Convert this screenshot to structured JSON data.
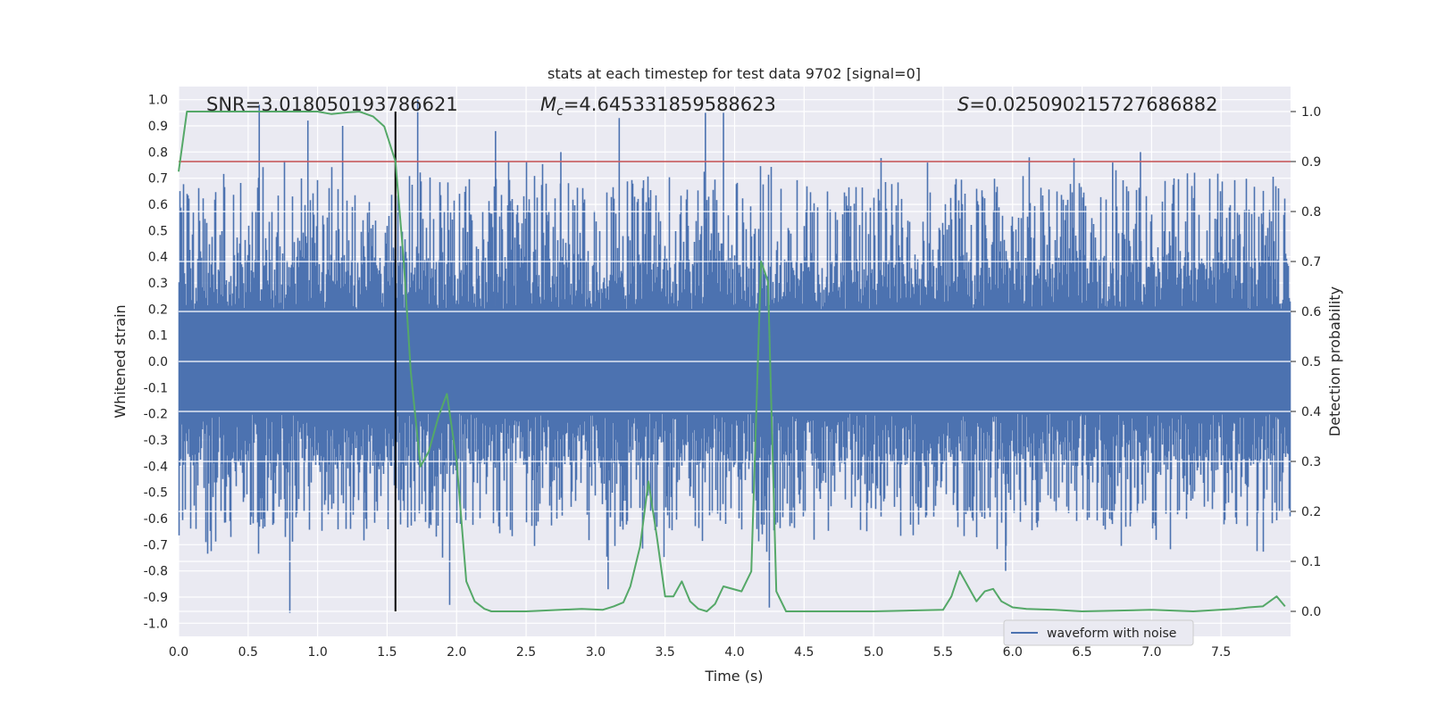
{
  "chart_data": {
    "type": "line",
    "title": "stats at each timestep for test data 9702 [signal=0]",
    "xlabel": "Time (s)",
    "ylabel_left": "Whitened strain",
    "ylabel_right": "Detection probability",
    "xlim": [
      0.0,
      8.0
    ],
    "ylim_left": [
      -1.05,
      1.05
    ],
    "ylim_right": [
      -0.05,
      1.05
    ],
    "xticks": [
      "0.0",
      "0.5",
      "1.0",
      "1.5",
      "2.0",
      "2.5",
      "3.0",
      "3.5",
      "4.0",
      "4.5",
      "5.0",
      "5.5",
      "6.0",
      "6.5",
      "7.0",
      "7.5"
    ],
    "yticks_left": [
      "1.0",
      "0.9",
      "0.8",
      "0.7",
      "0.6",
      "0.5",
      "0.4",
      "0.3",
      "0.2",
      "0.1",
      "0.0",
      "-0.1",
      "-0.2",
      "-0.3",
      "-0.4",
      "-0.5",
      "-0.6",
      "-0.7",
      "-0.8",
      "-0.9",
      "-1.0"
    ],
    "yticks_right": [
      "1.0",
      "0.9",
      "0.8",
      "0.7",
      "0.6",
      "0.5",
      "0.4",
      "0.3",
      "0.2",
      "0.1",
      "0.0"
    ],
    "grid": true,
    "legend_placement": "lower-center",
    "annotations": {
      "snr": "SNR=3.018050193786621",
      "mc_prefix": "M",
      "mc_sub": "c",
      "mc_value": "=4.645331859588623",
      "s_prefix": "S",
      "s_value": "=0.025090215727686882"
    },
    "threshold": {
      "value": 0.9,
      "axis": "right",
      "color": "#c44e52"
    },
    "marker_line": {
      "x": 1.56,
      "color": "#000000"
    },
    "series": [
      {
        "name": "waveform with noise",
        "axis": "left",
        "color": "#4c72b0",
        "style": "dense-noise",
        "core_amplitude": 0.2,
        "spike_peaks": [
          {
            "x": 0.58,
            "y": 0.98
          },
          {
            "x": 0.93,
            "y": 0.92
          },
          {
            "x": 1.18,
            "y": 0.9
          },
          {
            "x": 1.72,
            "y": 1.0
          },
          {
            "x": 2.28,
            "y": 0.88
          },
          {
            "x": 2.75,
            "y": 0.8
          },
          {
            "x": 3.17,
            "y": 0.93
          },
          {
            "x": 3.79,
            "y": 0.95
          },
          {
            "x": 3.92,
            "y": 0.95
          },
          {
            "x": 6.12,
            "y": 0.78
          },
          {
            "x": 6.72,
            "y": 0.76
          },
          {
            "x": 6.92,
            "y": 0.8
          },
          {
            "x": 0.8,
            "y": -0.96
          },
          {
            "x": 1.95,
            "y": -0.93
          },
          {
            "x": 3.09,
            "y": -0.87
          },
          {
            "x": 4.25,
            "y": -0.94
          },
          {
            "x": 5.95,
            "y": -0.8
          }
        ]
      },
      {
        "name": "",
        "axis": "right",
        "color": "#55a868",
        "x": [
          0.0,
          0.06,
          0.12,
          0.5,
          1.0,
          1.1,
          1.2,
          1.3,
          1.4,
          1.48,
          1.56,
          1.62,
          1.67,
          1.74,
          1.8,
          1.87,
          1.93,
          2.0,
          2.07,
          2.13,
          2.2,
          2.25,
          2.3,
          2.5,
          2.75,
          2.9,
          3.05,
          3.13,
          3.2,
          3.25,
          3.32,
          3.38,
          3.44,
          3.5,
          3.56,
          3.62,
          3.68,
          3.74,
          3.8,
          3.86,
          3.92,
          4.05,
          4.12,
          4.19,
          4.24,
          4.3,
          4.37,
          4.5,
          4.8,
          5.0,
          5.5,
          5.56,
          5.62,
          5.68,
          5.74,
          5.8,
          5.86,
          5.92,
          6.0,
          6.1,
          6.3,
          6.5,
          7.0,
          7.3,
          7.6,
          7.7,
          7.8,
          7.9,
          7.96
        ],
        "y": [
          0.88,
          1.0,
          1.0,
          1.0,
          1.0,
          0.995,
          0.998,
          1.0,
          0.99,
          0.97,
          0.9,
          0.7,
          0.48,
          0.29,
          0.32,
          0.39,
          0.435,
          0.3,
          0.06,
          0.02,
          0.005,
          0.0,
          0.0,
          0.0,
          0.003,
          0.005,
          0.003,
          0.01,
          0.018,
          0.05,
          0.13,
          0.26,
          0.15,
          0.03,
          0.03,
          0.06,
          0.02,
          0.005,
          0.0,
          0.015,
          0.05,
          0.04,
          0.08,
          0.7,
          0.66,
          0.04,
          0.0,
          0.0,
          0.0,
          0.0,
          0.003,
          0.03,
          0.08,
          0.05,
          0.02,
          0.04,
          0.045,
          0.02,
          0.008,
          0.005,
          0.003,
          0.0,
          0.003,
          0.0,
          0.005,
          0.008,
          0.01,
          0.03,
          0.01
        ]
      }
    ]
  }
}
